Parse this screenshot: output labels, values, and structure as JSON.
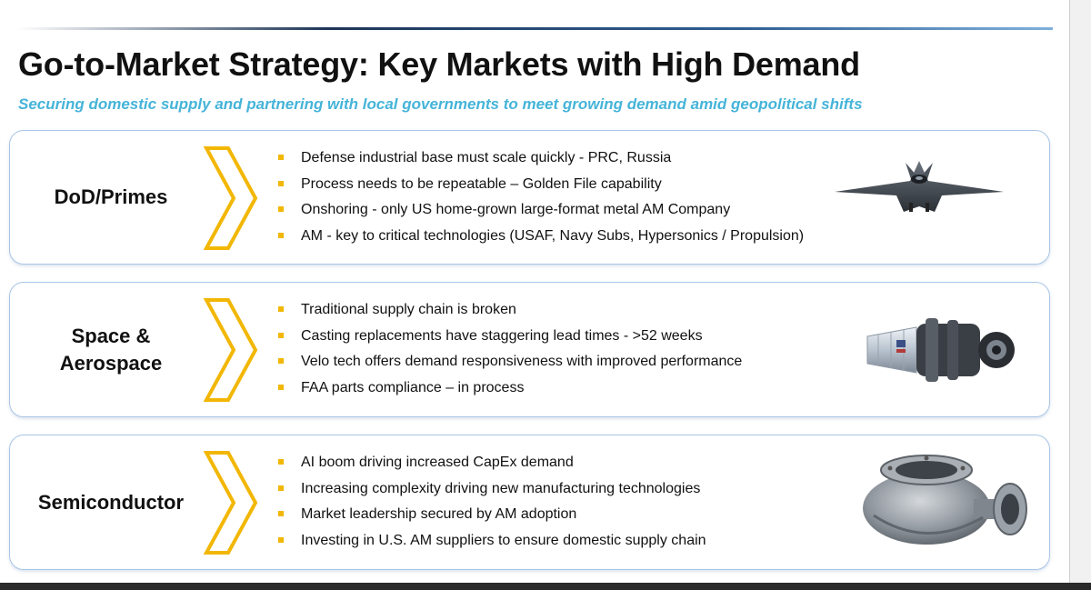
{
  "title": "Go-to-Market Strategy: Key Markets with High Demand",
  "subtitle": "Securing domestic supply and partnering with local governments to meet growing demand amid geopolitical shifts",
  "colors": {
    "accent": "#F2B705",
    "subtitle": "#45B4D8",
    "panel_border": "#A9C6E6"
  },
  "markets": [
    {
      "label_lines": [
        "DoD/Primes"
      ],
      "bullets": [
        "Defense industrial base must scale quickly - PRC, Russia",
        "Process needs to be repeatable – Golden File capability",
        "Onshoring - only US home-grown large-format metal AM Company",
        "AM - key to critical technologies (USAF, Navy Subs, Hypersonics / Propulsion)"
      ],
      "image_icon": "fighter-jet-icon"
    },
    {
      "label_lines": [
        "Space &",
        "Aerospace"
      ],
      "bullets": [
        "Traditional supply chain is broken",
        "Casting replacements have staggering lead times - >52 weeks",
        "Velo tech offers demand responsiveness with improved performance",
        "FAA parts compliance – in process"
      ],
      "image_icon": "rocket-engine-icon"
    },
    {
      "label_lines": [
        "Semiconductor"
      ],
      "bullets": [
        "AI boom driving increased CapEx demand",
        "Increasing complexity driving new manufacturing technologies",
        "Market leadership secured by AM adoption",
        "Investing in U.S. AM suppliers to ensure domestic supply chain"
      ],
      "image_icon": "pump-housing-icon"
    }
  ]
}
